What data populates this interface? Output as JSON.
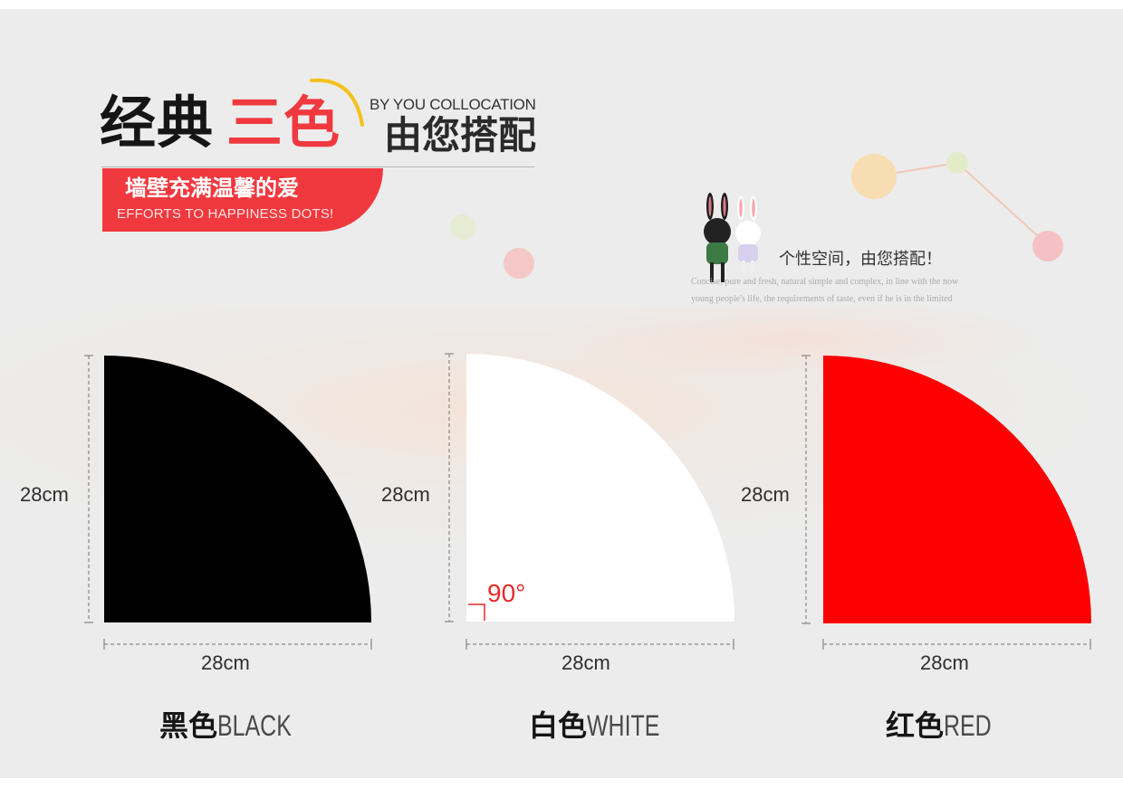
{
  "header": {
    "title_main": "经典",
    "title_accent": "三色",
    "subtitle_en": "BY YOU COLLOCATION",
    "subtitle_cn": "由您搭配",
    "slogan_cn": "墙壁充满温馨的爱",
    "slogan_en": "EFFORTS TO HAPPINESS DOTS!"
  },
  "decoration": {
    "tagline": "个性空间，由您搭配！",
    "blurb": "Concise, pure and fresh, natural simple and complex, in line with the now young people's life, the requirements of taste, even if he is in the limited"
  },
  "products": [
    {
      "name_cn": "黑色",
      "name_en": "BLACK",
      "color": "#000000",
      "width_label": "28cm",
      "height_label": "28cm"
    },
    {
      "name_cn": "白色",
      "name_en": "WHITE",
      "color": "#ffffff",
      "width_label": "28cm",
      "height_label": "28cm",
      "angle_label": "90°"
    },
    {
      "name_cn": "红色",
      "name_en": "RED",
      "color": "#ff0000",
      "width_label": "28cm",
      "height_label": "28cm"
    }
  ],
  "colors": {
    "accent": "#f0393f",
    "background": "#ececec"
  }
}
